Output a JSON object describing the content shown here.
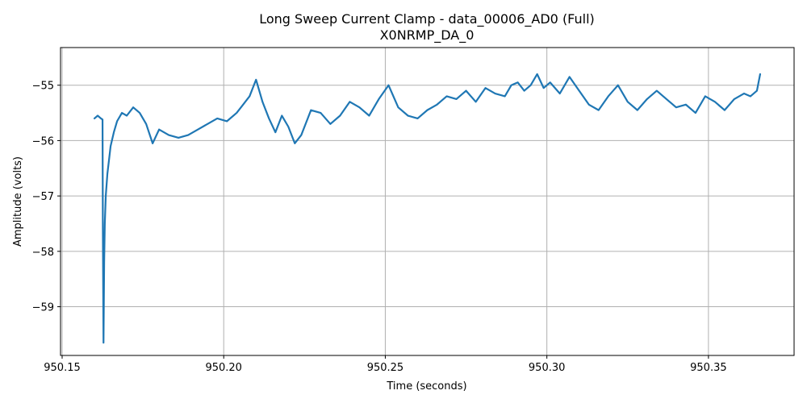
{
  "chart_data": {
    "type": "line",
    "title": "Long Sweep Current Clamp - data_00006_AD0 (Full)",
    "subtitle": "X0NRMP_DA_0",
    "xlabel": "Time (seconds)",
    "ylabel": "Amplitude (volts)",
    "xlim": [
      950.1495,
      950.3765
    ],
    "ylim": [
      -59.88,
      -54.32
    ],
    "xticks": [
      950.15,
      950.2,
      950.25,
      950.3,
      950.35
    ],
    "xtick_labels": [
      "950.15",
      "950.20",
      "950.25",
      "950.30",
      "950.35"
    ],
    "yticks": [
      -55,
      -56,
      -57,
      -58,
      -59
    ],
    "ytick_labels": [
      "−55",
      "−56",
      "−57",
      "−58",
      "−59"
    ],
    "grid": true,
    "series": [
      {
        "color": "#1f77b4",
        "x": [
          950.16,
          950.161,
          950.162,
          950.1625,
          950.1626,
          950.1628,
          950.163,
          950.1632,
          950.1635,
          950.164,
          950.1645,
          950.165,
          950.166,
          950.167,
          950.1685,
          950.17,
          950.172,
          950.174,
          950.176,
          950.178,
          950.18,
          950.183,
          950.186,
          950.189,
          950.192,
          950.195,
          950.198,
          950.201,
          950.204,
          950.206,
          950.208,
          950.21,
          950.212,
          950.214,
          950.216,
          950.218,
          950.22,
          950.222,
          950.224,
          950.227,
          950.23,
          950.233,
          950.236,
          950.239,
          950.242,
          950.245,
          950.248,
          950.251,
          950.254,
          950.257,
          950.26,
          950.263,
          950.266,
          950.269,
          950.272,
          950.275,
          950.278,
          950.281,
          950.284,
          950.287,
          950.289,
          950.291,
          950.293,
          950.295,
          950.297,
          950.299,
          950.301,
          950.304,
          950.307,
          950.31,
          950.313,
          950.316,
          950.319,
          950.322,
          950.325,
          950.328,
          950.331,
          950.334,
          950.337,
          950.34,
          950.343,
          950.346,
          950.349,
          950.352,
          950.355,
          950.358,
          950.361,
          950.363,
          950.365,
          950.366
        ],
        "y": [
          -55.6,
          -55.55,
          -55.6,
          -55.62,
          -57.6,
          -59.65,
          -58.2,
          -57.5,
          -57.0,
          -56.6,
          -56.35,
          -56.1,
          -55.85,
          -55.65,
          -55.5,
          -55.55,
          -55.4,
          -55.5,
          -55.7,
          -56.05,
          -55.8,
          -55.9,
          -55.95,
          -55.9,
          -55.8,
          -55.7,
          -55.6,
          -55.65,
          -55.5,
          -55.35,
          -55.2,
          -54.9,
          -55.3,
          -55.6,
          -55.85,
          -55.55,
          -55.75,
          -56.05,
          -55.9,
          -55.45,
          -55.5,
          -55.7,
          -55.55,
          -55.3,
          -55.4,
          -55.55,
          -55.25,
          -55.0,
          -55.4,
          -55.55,
          -55.6,
          -55.45,
          -55.35,
          -55.2,
          -55.25,
          -55.1,
          -55.3,
          -55.05,
          -55.15,
          -55.2,
          -55.0,
          -54.95,
          -55.1,
          -55.0,
          -54.8,
          -55.05,
          -54.95,
          -55.15,
          -54.85,
          -55.1,
          -55.35,
          -55.45,
          -55.2,
          -55.0,
          -55.3,
          -55.45,
          -55.25,
          -55.1,
          -55.25,
          -55.4,
          -55.35,
          -55.5,
          -55.2,
          -55.3,
          -55.45,
          -55.25,
          -55.15,
          -55.2,
          -55.1,
          -54.8
        ]
      }
    ]
  }
}
